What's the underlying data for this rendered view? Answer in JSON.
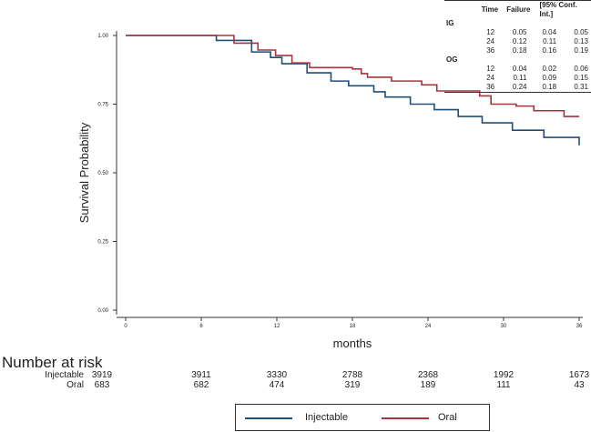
{
  "chart_data": {
    "type": "line",
    "title": "",
    "xlabel": "months",
    "ylabel": "Survival Probability",
    "xlim": [
      0,
      36
    ],
    "ylim": [
      0,
      1
    ],
    "xticks": [
      "0",
      "6",
      "12",
      "18",
      "24",
      "30",
      "36"
    ],
    "yticks": [
      "0.00",
      "0.25",
      "0.50",
      "0.75",
      "1.00"
    ],
    "legend": "bottom-center",
    "series": [
      {
        "name": "Injectable",
        "color": "#1f4e79",
        "x": [
          0,
          6.15,
          7.2,
          10.0,
          11.5,
          12.4,
          14.4,
          16.3,
          17.7,
          19.7,
          20.6,
          22.6,
          24.5,
          26.4,
          28.3,
          30.7,
          33.2,
          36
        ],
        "y": [
          1.0,
          1.0,
          0.982,
          0.94,
          0.92,
          0.897,
          0.864,
          0.834,
          0.817,
          0.795,
          0.776,
          0.75,
          0.73,
          0.705,
          0.682,
          0.655,
          0.629,
          0.6
        ]
      },
      {
        "name": "Oral",
        "color": "#a8323e",
        "x": [
          0,
          6.15,
          8.6,
          10.5,
          11.9,
          13.2,
          14.6,
          18.0,
          18.7,
          19.2,
          21.1,
          23.5,
          24.7,
          28.1,
          29.0,
          31.0,
          32.4,
          34.8,
          36
        ],
        "y": [
          1.0,
          1.0,
          0.972,
          0.947,
          0.927,
          0.9,
          0.883,
          0.878,
          0.861,
          0.848,
          0.834,
          0.82,
          0.798,
          0.78,
          0.75,
          0.743,
          0.726,
          0.705,
          0.705
        ]
      }
    ]
  },
  "failure_table": {
    "headers": [
      "Time",
      "Failure",
      "[95% Conf. Int.]"
    ],
    "groups": [
      {
        "label": "IG",
        "rows": [
          [
            "12",
            "0.05",
            "0.04",
            "0.05"
          ],
          [
            "24",
            "0.12",
            "0.11",
            "0.13"
          ],
          [
            "36",
            "0.18",
            "0.16",
            "0.19"
          ]
        ]
      },
      {
        "label": "OG",
        "rows": [
          [
            "12",
            "0.04",
            "0.02",
            "0.06"
          ],
          [
            "24",
            "0.11",
            "0.09",
            "0.15"
          ],
          [
            "36",
            "0.24",
            "0.18",
            "0.31"
          ]
        ]
      }
    ]
  },
  "risk_table": {
    "title": "Number at risk",
    "rows": [
      {
        "label": "Injectable",
        "values": [
          "3919",
          "3911",
          "3330",
          "2788",
          "2368",
          "1992",
          "1673"
        ]
      },
      {
        "label": "Oral",
        "values": [
          "683",
          "682",
          "474",
          "319",
          "189",
          "111",
          "43"
        ]
      }
    ]
  },
  "legend": {
    "items": [
      {
        "label": "Injectable",
        "color": "#1f4e79"
      },
      {
        "label": "Oral",
        "color": "#a8323e"
      }
    ]
  }
}
